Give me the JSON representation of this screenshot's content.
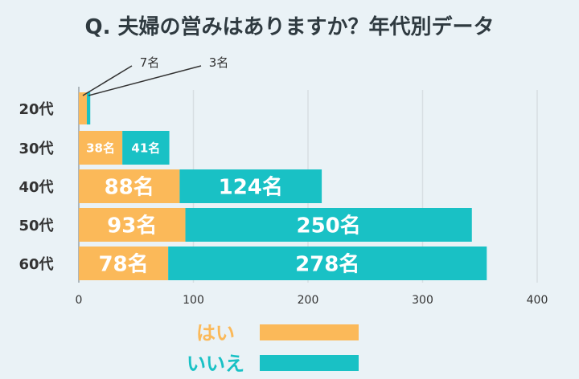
{
  "chart_data": {
    "type": "bar",
    "orientation": "horizontal",
    "stacked": true,
    "title": "Q. 夫婦の営みはありますか？年代別データ",
    "categories": [
      "20代",
      "30代",
      "40代",
      "50代",
      "60代"
    ],
    "series": [
      {
        "name": "はい",
        "color": "#fbb959",
        "values": [
          7,
          38,
          88,
          93,
          78
        ],
        "labels": [
          "7名",
          "38名",
          "88名",
          "93名",
          "78名"
        ]
      },
      {
        "name": "いいえ",
        "color": "#19c1c5",
        "values": [
          3,
          41,
          124,
          250,
          278
        ],
        "labels": [
          "3名",
          "41名",
          "124名",
          "250名",
          "278名"
        ]
      }
    ],
    "xlim": [
      0,
      400
    ],
    "xticks": [
      "0",
      "100",
      "200",
      "300",
      "400"
    ],
    "grid": true,
    "legend_position": "bottom"
  }
}
